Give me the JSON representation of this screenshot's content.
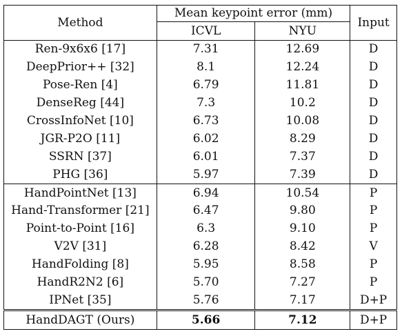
{
  "table": {
    "headers": {
      "method": "Method",
      "mean_error": "Mean keypoint error (mm)",
      "icvl": "ICVL",
      "nyu": "NYU",
      "input": "Input"
    },
    "groups": [
      {
        "rows": [
          {
            "method": "Ren-9x6x6 [17]",
            "icvl": "7.31",
            "nyu": "12.69",
            "input": "D"
          },
          {
            "method": "DeepPrior++ [32]",
            "icvl": "8.1",
            "nyu": "12.24",
            "input": "D"
          },
          {
            "method": "Pose-Ren [4]",
            "icvl": "6.79",
            "nyu": "11.81",
            "input": "D"
          },
          {
            "method": "DenseReg [44]",
            "icvl": "7.3",
            "nyu": "10.2",
            "input": "D"
          },
          {
            "method": "CrossInfoNet [10]",
            "icvl": "6.73",
            "nyu": "10.08",
            "input": "D"
          },
          {
            "method": "JGR-P2O [11]",
            "icvl": "6.02",
            "nyu": "8.29",
            "input": "D"
          },
          {
            "method": "SSRN [37]",
            "icvl": "6.01",
            "nyu": "7.37",
            "input": "D"
          },
          {
            "method": "PHG [36]",
            "icvl": "5.97",
            "nyu": "7.39",
            "input": "D"
          }
        ]
      },
      {
        "rows": [
          {
            "method": "HandPointNet [13]",
            "icvl": "6.94",
            "nyu": "10.54",
            "input": "P"
          },
          {
            "method": "Hand-Transformer [21]",
            "icvl": "6.47",
            "nyu": "9.80",
            "input": "P"
          },
          {
            "method": "Point-to-Point [16]",
            "icvl": "6.3",
            "nyu": "9.10",
            "input": "P"
          },
          {
            "method": "V2V [31]",
            "icvl": "6.28",
            "nyu": "8.42",
            "input": "V"
          },
          {
            "method": "HandFolding [8]",
            "icvl": "5.95",
            "nyu": "8.58",
            "input": "P"
          },
          {
            "method": "HandR2N2 [6]",
            "icvl": "5.70",
            "nyu": "7.27",
            "input": "P"
          },
          {
            "method": "IPNet [35]",
            "icvl": "5.76",
            "nyu": "7.17",
            "input": "D+P"
          }
        ]
      }
    ],
    "ours": {
      "method": "HandDAGT (Ours)",
      "icvl": "5.66",
      "nyu": "7.12",
      "input": "D+P"
    }
  }
}
